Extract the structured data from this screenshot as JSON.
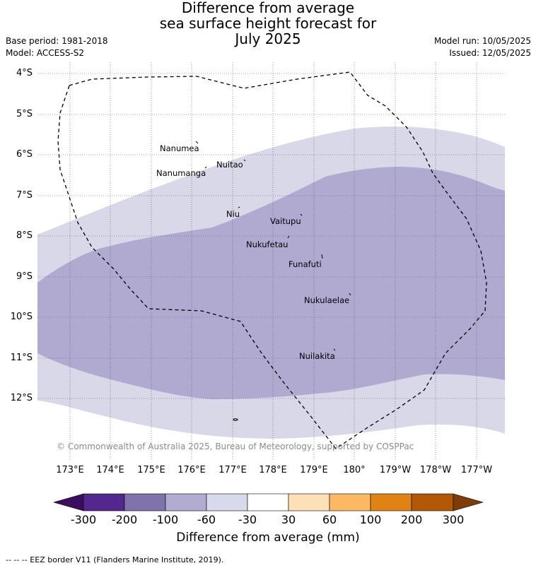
{
  "title": {
    "line1": "Difference from average",
    "line2": "sea surface height forecast for",
    "line3": "July 2025"
  },
  "meta": {
    "base_period": "Base period: 1981-2018",
    "model": "Model: ACCESS-S2",
    "model_run": "Model run: 10/05/2025",
    "issued": "Issued: 12/05/2025"
  },
  "map": {
    "lat_labels": [
      "4°S",
      "5°S",
      "6°S",
      "7°S",
      "8°S",
      "9°S",
      "10°S",
      "11°S",
      "12°S"
    ],
    "lon_labels": [
      "173°E",
      "174°E",
      "175°E",
      "176°E",
      "177°E",
      "178°E",
      "179°E",
      "180°",
      "179°W",
      "178°W",
      "177°W"
    ],
    "places": [
      {
        "name": "Nanumea"
      },
      {
        "name": "Nuitao"
      },
      {
        "name": "Nanumanga"
      },
      {
        "name": "Niu"
      },
      {
        "name": "Vaitupu"
      },
      {
        "name": "Nukufetau"
      },
      {
        "name": "Funafuti"
      },
      {
        "name": "Nukulaelae"
      },
      {
        "name": "Nuilakita"
      }
    ],
    "copyright": "© Commonwealth of Australia 2025, Bureau of Meteorology, supported by COSPPac",
    "colors": {
      "band_-60_-30": "#d8d8e9",
      "band_-100_-60": "#b0a9d0",
      "grid": "#555555"
    }
  },
  "colorbar": {
    "labels": [
      "-300",
      "-200",
      "-100",
      "-60",
      "-30",
      "30",
      "60",
      "100",
      "200",
      "300"
    ],
    "colors": [
      "#3d0d60",
      "#54278f",
      "#8073ac",
      "#b2abd2",
      "#d8daeb",
      "#ffffff",
      "#fee0b6",
      "#fdb863",
      "#e08214",
      "#b35806",
      "#7f3b08"
    ],
    "title": "Difference from average (mm)"
  },
  "footer": "--  --  -- EEZ border V11 (Flanders Marine Institute, 2019)."
}
